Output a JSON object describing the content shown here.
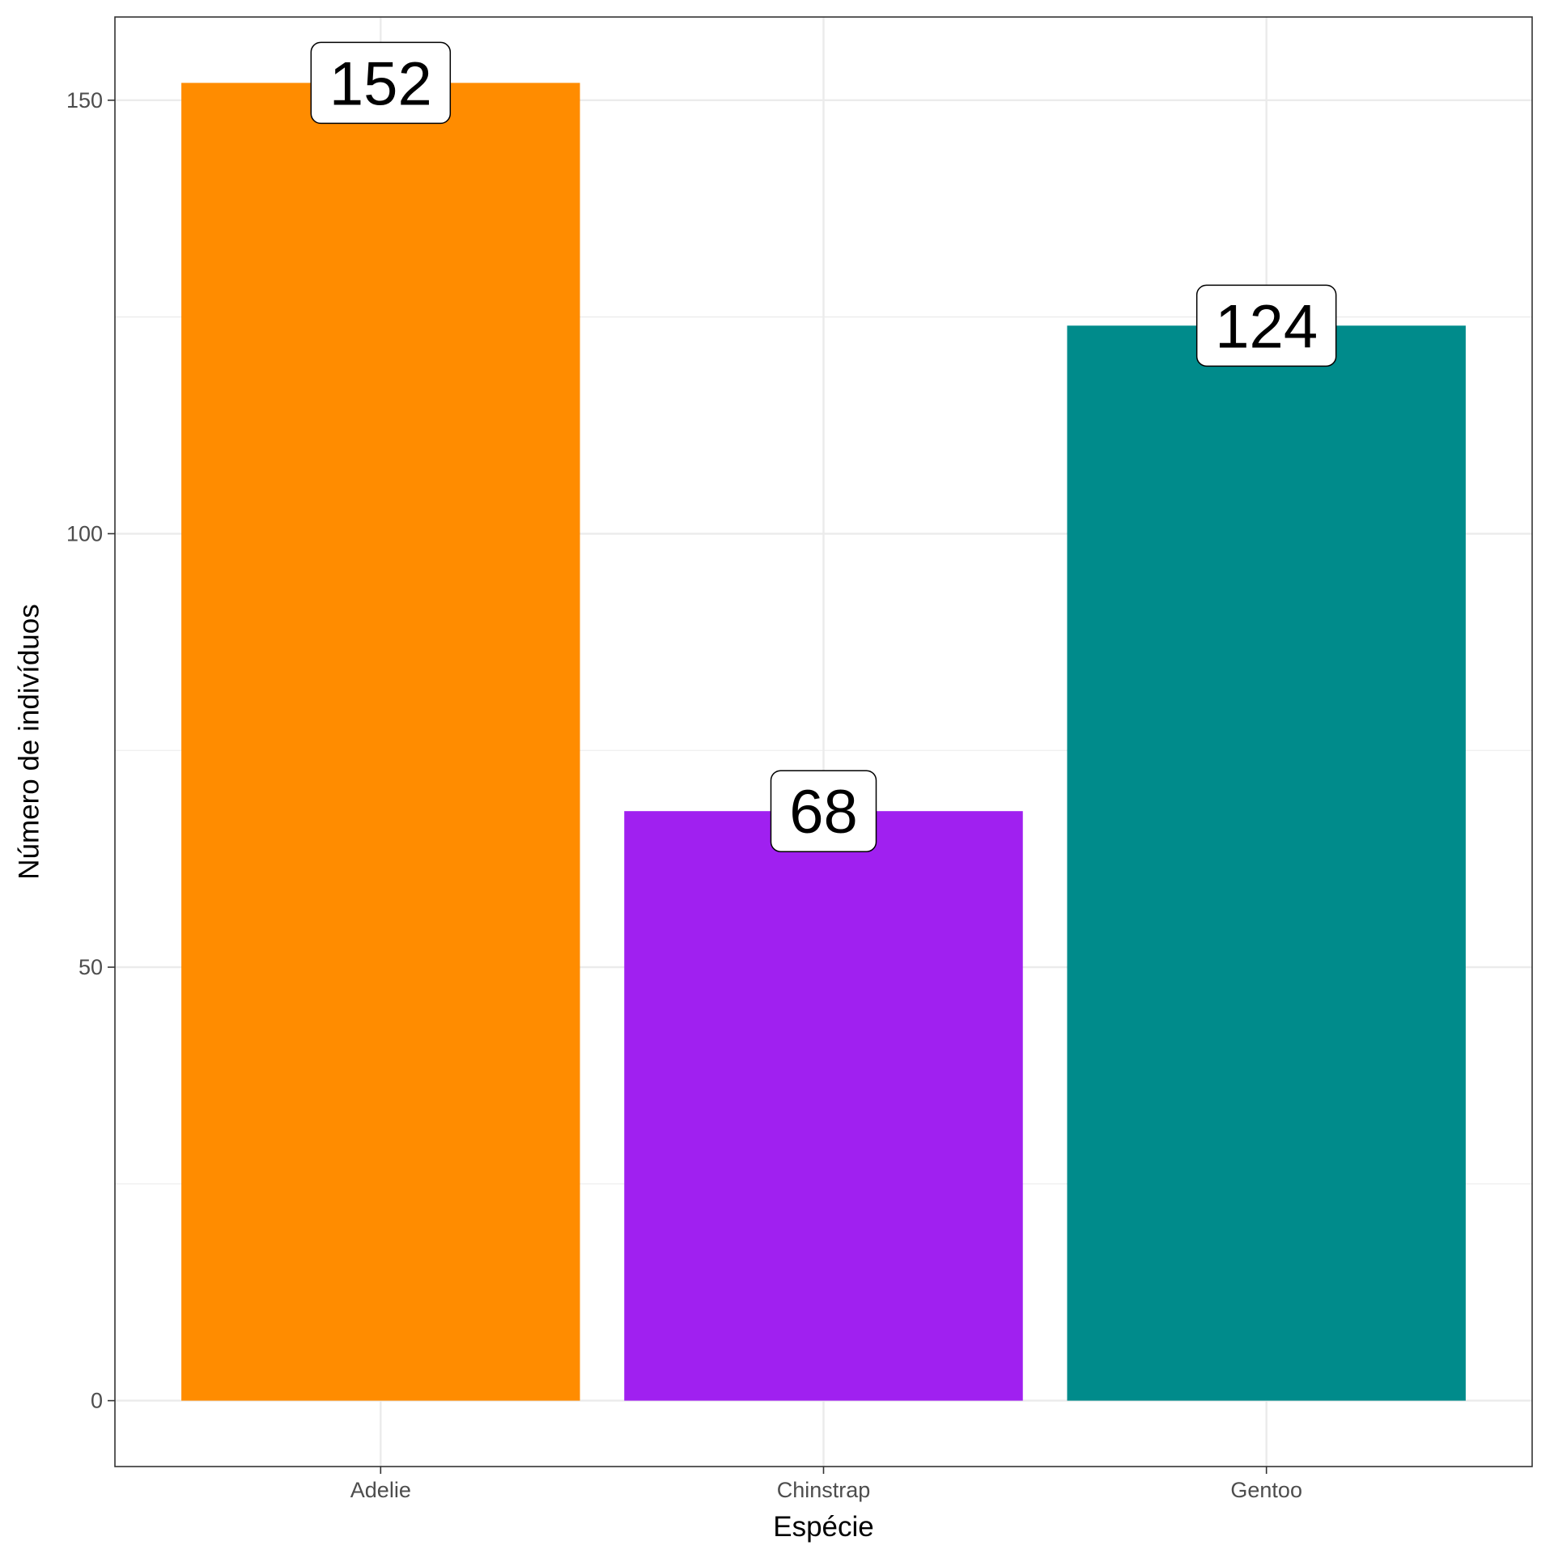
{
  "chart_data": {
    "type": "bar",
    "categories": [
      "Adelie",
      "Chinstrap",
      "Gentoo"
    ],
    "values": [
      152,
      68,
      124
    ],
    "data_labels": [
      "152",
      "68",
      "124"
    ],
    "colors": [
      "#FF8C00",
      "#A020F0",
      "#008B8B"
    ],
    "xlabel": "Espécie",
    "ylabel": "Número de indivíduos",
    "ylim": [
      -7.6,
      159.6
    ],
    "yticks": [
      0,
      50,
      100,
      150
    ],
    "ytick_labels": [
      "0",
      "50",
      "100",
      "150"
    ],
    "grid": true,
    "legend": "none"
  }
}
